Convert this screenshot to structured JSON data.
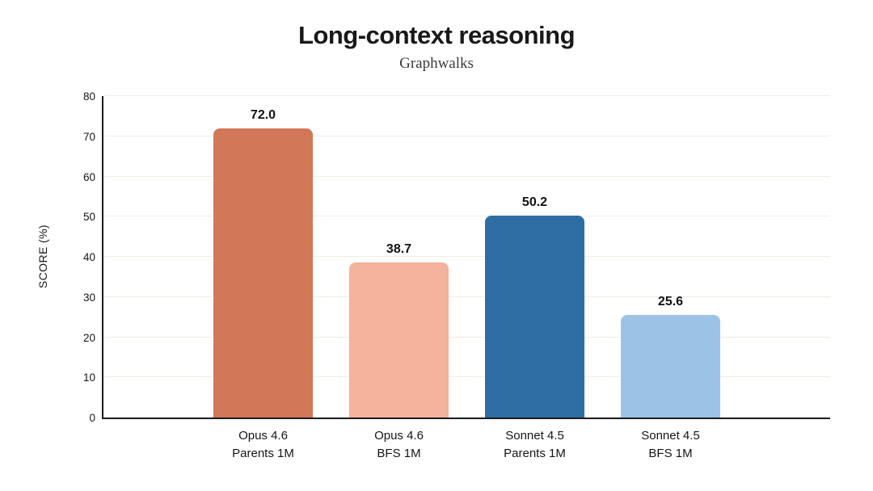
{
  "header": {
    "title": "Long-context reasoning",
    "subtitle": "Graphwalks"
  },
  "chart_data": {
    "type": "bar",
    "title": "Long-context reasoning",
    "subtitle": "Graphwalks",
    "xlabel": "",
    "ylabel": "SCORE (%)",
    "ylim": [
      0,
      80
    ],
    "yticks": [
      0,
      10,
      20,
      30,
      40,
      50,
      60,
      70,
      80
    ],
    "grid": "horizontal",
    "legend": "none",
    "categories": [
      {
        "line1": "Opus 4.6",
        "line2": "Parents 1M"
      },
      {
        "line1": "Opus 4.6",
        "line2": "BFS 1M"
      },
      {
        "line1": "Sonnet 4.5",
        "line2": "Parents 1M"
      },
      {
        "line1": "Sonnet 4.5",
        "line2": "BFS 1M"
      }
    ],
    "values": [
      72.0,
      38.7,
      50.2,
      25.6
    ],
    "value_labels": [
      "72.0",
      "38.7",
      "50.2",
      "25.6"
    ],
    "bar_colors": [
      "#d27757",
      "#f4b19c",
      "#2e6da4",
      "#9cc3e6"
    ],
    "colors": {
      "axis": "#1c1c1c",
      "grid": "#f0ece2",
      "title_text": "#191919",
      "subtitle_text": "#3b3b3b",
      "background": "#ffffff"
    }
  }
}
